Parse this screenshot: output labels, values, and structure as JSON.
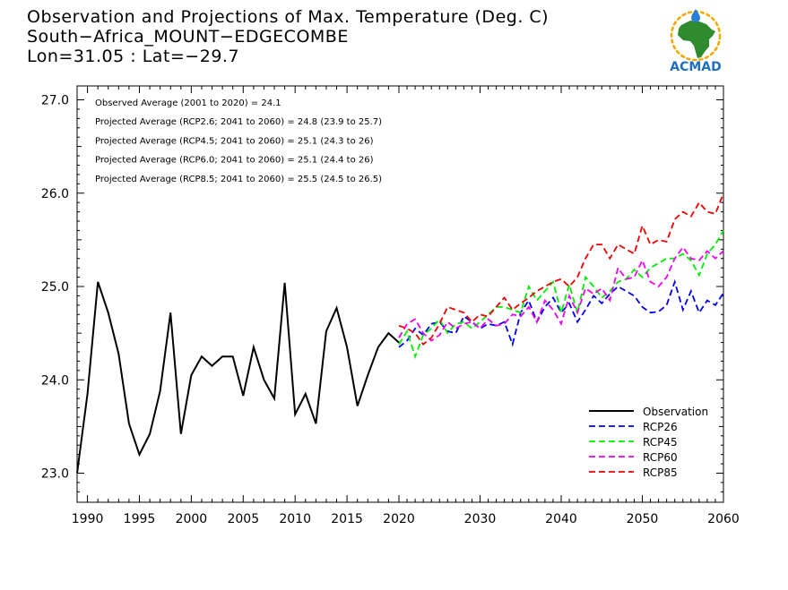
{
  "header": {
    "title_line1": "Observation and Projections of Max. Temperature (Deg. C)",
    "title_line2": "South−Africa_MOUNT−EDGECOMBE",
    "title_line3": "Lon=31.05 : Lat=−29.7"
  },
  "logo": {
    "text": "ACMAD"
  },
  "chart_data": {
    "type": "line",
    "title": "Observation and Projections of Max. Temperature (Deg. C)",
    "xlabel": "",
    "ylabel": "",
    "xlim": [
      1989,
      2060
    ],
    "ylim": [
      22.8,
      27.1
    ],
    "x_ticks_label": [
      "1990",
      "1995",
      "2000",
      "2005",
      "2010",
      "2015",
      "2020",
      "2030",
      "2040",
      "2050",
      "2060"
    ],
    "y_ticks": [
      23.0,
      24.0,
      25.0,
      26.0,
      27.0
    ],
    "y_tick_labels": [
      "23.0",
      "24.0",
      "25.0",
      "26.0",
      "27.0"
    ],
    "grid": false,
    "legend_position": "bottom-right",
    "annotations": [
      "Observed Average (2001 to 2020) = 24.1",
      "Projected Average (RCP2.6; 2041 to 2060) = 24.8 (23.9 to 25.7)",
      "Projected Average (RCP4.5; 2041 to 2060) = 25.1 (24.3 to 26)",
      "Projected Average (RCP6.0; 2041 to 2060) = 25.1 (24.4 to 26)",
      "Projected Average (RCP8.5; 2041 to 2060) = 25.5 (24.5 to 26.5)"
    ],
    "series": [
      {
        "name": "Observation",
        "color": "#000000",
        "dash": "solid",
        "x": [
          1989,
          1990,
          1991,
          1992,
          1993,
          1994,
          1995,
          1996,
          1997,
          1998,
          1999,
          2000,
          2001,
          2002,
          2003,
          2004,
          2005,
          2006,
          2007,
          2008,
          2009,
          2010,
          2011,
          2012,
          2013,
          2014,
          2015,
          2016,
          2017,
          2018,
          2019,
          2020
        ],
        "y": [
          23.0,
          23.85,
          25.05,
          24.72,
          24.28,
          23.53,
          23.2,
          23.42,
          23.88,
          24.72,
          23.42,
          24.05,
          24.25,
          24.15,
          24.25,
          24.25,
          23.83,
          24.35,
          24.0,
          23.8,
          25.04,
          23.63,
          23.85,
          23.53,
          24.52,
          24.77,
          24.35,
          23.72,
          24.05,
          24.35,
          24.5,
          24.4
        ]
      },
      {
        "name": "RCP26",
        "color": "#0000ee",
        "dash": "dashed",
        "x": [
          2020,
          2021,
          2022,
          2023,
          2024,
          2025,
          2026,
          2027,
          2028,
          2029,
          2030,
          2031,
          2032,
          2033,
          2034,
          2035,
          2036,
          2037,
          2038,
          2039,
          2040,
          2041,
          2042,
          2043,
          2044,
          2045,
          2046,
          2047,
          2048,
          2049,
          2050,
          2051,
          2052,
          2053,
          2054,
          2055,
          2056,
          2057,
          2058,
          2059,
          2060
        ],
        "y": [
          24.35,
          24.42,
          24.55,
          24.48,
          24.6,
          24.62,
          24.52,
          24.5,
          24.68,
          24.62,
          24.55,
          24.6,
          24.58,
          24.62,
          24.38,
          24.72,
          24.85,
          24.62,
          24.78,
          24.88,
          24.72,
          24.82,
          24.62,
          24.75,
          24.9,
          24.82,
          24.92,
          25.0,
          24.95,
          24.9,
          24.78,
          24.72,
          24.73,
          24.8,
          25.05,
          24.75,
          24.95,
          24.72,
          24.85,
          24.8,
          24.93
        ]
      },
      {
        "name": "RCP45",
        "color": "#00ee00",
        "dash": "dashed",
        "x": [
          2020,
          2021,
          2022,
          2023,
          2024,
          2025,
          2026,
          2027,
          2028,
          2029,
          2030,
          2031,
          2032,
          2033,
          2034,
          2035,
          2036,
          2037,
          2038,
          2039,
          2040,
          2041,
          2042,
          2043,
          2044,
          2045,
          2046,
          2047,
          2048,
          2049,
          2050,
          2051,
          2052,
          2053,
          2054,
          2055,
          2056,
          2057,
          2058,
          2059,
          2060
        ],
        "y": [
          24.38,
          24.52,
          24.25,
          24.48,
          24.55,
          24.65,
          24.5,
          24.6,
          24.62,
          24.55,
          24.62,
          24.7,
          24.78,
          24.78,
          24.75,
          24.72,
          25.0,
          24.85,
          24.95,
          25.05,
          24.72,
          25.02,
          24.72,
          25.1,
          25.0,
          24.88,
          24.95,
          25.05,
          25.08,
          25.18,
          25.1,
          25.2,
          25.25,
          25.3,
          25.3,
          25.35,
          25.28,
          25.12,
          25.35,
          25.45,
          25.6
        ]
      },
      {
        "name": "RCP60",
        "color": "#ee00ee",
        "dash": "dashed",
        "x": [
          2020,
          2021,
          2022,
          2023,
          2024,
          2025,
          2026,
          2027,
          2028,
          2029,
          2030,
          2031,
          2032,
          2033,
          2034,
          2035,
          2036,
          2037,
          2038,
          2039,
          2040,
          2041,
          2042,
          2043,
          2044,
          2045,
          2046,
          2047,
          2048,
          2049,
          2050,
          2051,
          2052,
          2053,
          2054,
          2055,
          2056,
          2057,
          2058,
          2059,
          2060
        ],
        "y": [
          24.45,
          24.6,
          24.65,
          24.5,
          24.42,
          24.48,
          24.62,
          24.55,
          24.6,
          24.62,
          24.55,
          24.65,
          24.58,
          24.6,
          24.7,
          24.68,
          24.78,
          24.62,
          24.85,
          24.75,
          24.6,
          24.9,
          24.72,
          24.98,
          24.92,
          24.98,
          24.85,
          25.2,
          25.08,
          25.1,
          25.28,
          25.05,
          25.0,
          25.1,
          25.3,
          25.42,
          25.3,
          25.28,
          25.38,
          25.3,
          25.38
        ]
      },
      {
        "name": "RCP85",
        "color": "#ee0000",
        "dash": "dashed",
        "x": [
          2020,
          2021,
          2022,
          2023,
          2024,
          2025,
          2026,
          2027,
          2028,
          2029,
          2030,
          2031,
          2032,
          2033,
          2034,
          2035,
          2036,
          2037,
          2038,
          2039,
          2040,
          2041,
          2042,
          2043,
          2044,
          2045,
          2046,
          2047,
          2048,
          2049,
          2050,
          2051,
          2052,
          2053,
          2054,
          2055,
          2056,
          2057,
          2058,
          2059,
          2060
        ],
        "y": [
          24.58,
          24.55,
          24.5,
          24.38,
          24.45,
          24.6,
          24.78,
          24.75,
          24.72,
          24.62,
          24.7,
          24.68,
          24.78,
          24.88,
          24.75,
          24.82,
          24.88,
          24.95,
          25.0,
          25.05,
          25.08,
          25.0,
          25.1,
          25.3,
          25.45,
          25.45,
          25.3,
          25.45,
          25.4,
          25.35,
          25.65,
          25.45,
          25.5,
          25.48,
          25.72,
          25.8,
          25.75,
          25.9,
          25.8,
          25.78,
          26.0
        ]
      }
    ]
  }
}
